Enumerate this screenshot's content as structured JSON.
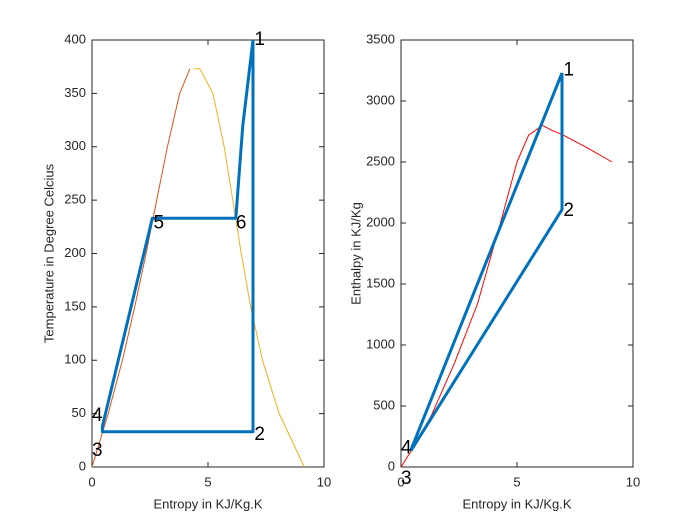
{
  "chart_data": [
    {
      "type": "line",
      "xlabel": "Entropy in KJ/Kg.K",
      "ylabel": "Temperature in Degree Celcius",
      "xlim": [
        0,
        10
      ],
      "xticks": [
        0,
        5,
        10
      ],
      "ylim": [
        0,
        400
      ],
      "yticks": [
        0,
        50,
        100,
        150,
        200,
        250,
        300,
        350,
        400
      ],
      "series": [
        {
          "color": "#d95319",
          "width": 1,
          "x": [
            0,
            0.7,
            1.31,
            1.84,
            2.33,
            2.79,
            3.25,
            3.78,
            4.22
          ],
          "values": [
            0,
            50,
            100,
            150,
            200,
            250,
            300,
            350,
            373
          ]
        },
        {
          "color": "#edb120",
          "width": 1,
          "x": [
            4.4,
            4.65,
            5.21,
            5.7,
            6.07,
            6.43,
            6.84,
            7.35,
            8.07,
            9.15
          ],
          "values": [
            373,
            373,
            350,
            300,
            250,
            200,
            150,
            100,
            50,
            0
          ]
        },
        {
          "color": "#0072bd",
          "width": 3,
          "x": [
            6.94,
            6.94,
            0.45,
            0.45,
            2.6,
            6.2,
            6.5,
            6.94
          ],
          "values": [
            400,
            33,
            33,
            38,
            233,
            233,
            320,
            400
          ]
        }
      ],
      "annotations": [
        {
          "text": "1",
          "x": 7.0,
          "y": 400
        },
        {
          "text": "2",
          "x": 7.0,
          "y": 30
        },
        {
          "text": "3",
          "x": 0.0,
          "y": 15
        },
        {
          "text": "4",
          "x": 0.0,
          "y": 48
        },
        {
          "text": "5",
          "x": 2.65,
          "y": 228
        },
        {
          "text": "6",
          "x": 6.2,
          "y": 228
        }
      ]
    },
    {
      "type": "line",
      "xlabel": "Entropy in KJ/Kg.K",
      "ylabel": "Enthalpy in KJ/Kg",
      "xlim": [
        0,
        10
      ],
      "xticks": [
        0,
        5,
        10
      ],
      "ylim": [
        0,
        3500
      ],
      "yticks": [
        0,
        500,
        1000,
        1500,
        2000,
        2500,
        3000,
        3500
      ],
      "series": [
        {
          "color": "#ff0000",
          "width": 1,
          "x": [
            0,
            0.7,
            1.3,
            2.3,
            3.3,
            4.4,
            4.5,
            5,
            5.5,
            6.1,
            6.5,
            7,
            8,
            9.1
          ],
          "values": [
            0,
            210,
            420,
            850,
            1340,
            2080,
            2150,
            2500,
            2720,
            2800,
            2760,
            2720,
            2620,
            2500
          ]
        },
        {
          "color": "#0072bd",
          "width": 3,
          "x": [
            6.94,
            6.94,
            0.45,
            0.45,
            6.94
          ],
          "values": [
            3230,
            2110,
            140,
            150,
            3230
          ]
        }
      ],
      "annotations": [
        {
          "text": "1",
          "x": 7.0,
          "y": 3250
        },
        {
          "text": "2",
          "x": 7.0,
          "y": 2100
        },
        {
          "text": "3",
          "x": 0.0,
          "y": -100
        },
        {
          "text": "4",
          "x": 0.0,
          "y": 150
        }
      ]
    }
  ]
}
